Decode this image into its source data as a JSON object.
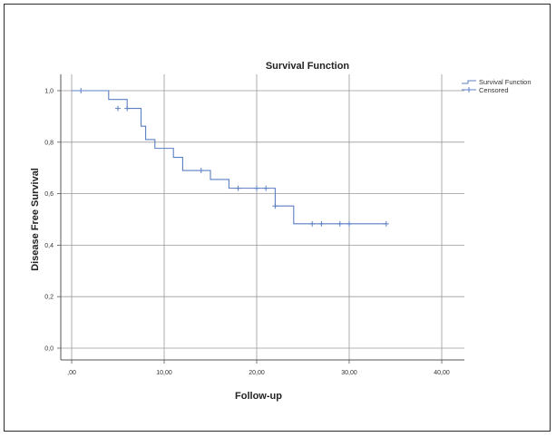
{
  "chart_data": {
    "type": "line",
    "subtype": "kaplan-meier-step",
    "title": "Survival Function",
    "xlabel": "Follow-up",
    "ylabel": "Disease Free Survival",
    "xlim": [
      0,
      41
    ],
    "ylim": [
      -0.05,
      1.05
    ],
    "x_ticks": [
      0,
      10,
      20,
      30,
      40
    ],
    "x_tick_labels": [
      ",00",
      "10,00",
      "20,00",
      "30,00",
      "40,00"
    ],
    "y_ticks": [
      0.0,
      0.2,
      0.4,
      0.6,
      0.8,
      1.0
    ],
    "y_tick_labels": [
      "0,0",
      "0,2",
      "0,4",
      "0,6",
      "0,8",
      "1,0"
    ],
    "grid": true,
    "legend_position": "top-right",
    "colors": {
      "survival": "#5b7fc4",
      "grid": "#9a9a9a",
      "axis": "#555555"
    },
    "series": [
      {
        "name": "Survival Function",
        "style": "step",
        "points": [
          [
            0,
            1.0
          ],
          [
            4,
            0.966
          ],
          [
            6,
            0.931
          ],
          [
            7.5,
            0.862
          ],
          [
            8,
            0.81
          ],
          [
            9,
            0.776
          ],
          [
            11,
            0.741
          ],
          [
            12,
            0.69
          ],
          [
            15,
            0.655
          ],
          [
            17,
            0.621
          ],
          [
            22,
            0.552
          ],
          [
            24,
            0.483
          ],
          [
            34,
            0.483
          ]
        ]
      },
      {
        "name": "Censored",
        "style": "marker-plus",
        "points": [
          [
            1,
            1.0
          ],
          [
            5,
            0.931
          ],
          [
            6,
            0.931
          ],
          [
            14,
            0.69
          ],
          [
            18,
            0.621
          ],
          [
            20,
            0.621
          ],
          [
            21,
            0.621
          ],
          [
            22,
            0.552
          ],
          [
            26,
            0.483
          ],
          [
            27,
            0.483
          ],
          [
            29,
            0.483
          ],
          [
            30,
            0.483
          ],
          [
            34,
            0.483
          ]
        ]
      }
    ]
  }
}
